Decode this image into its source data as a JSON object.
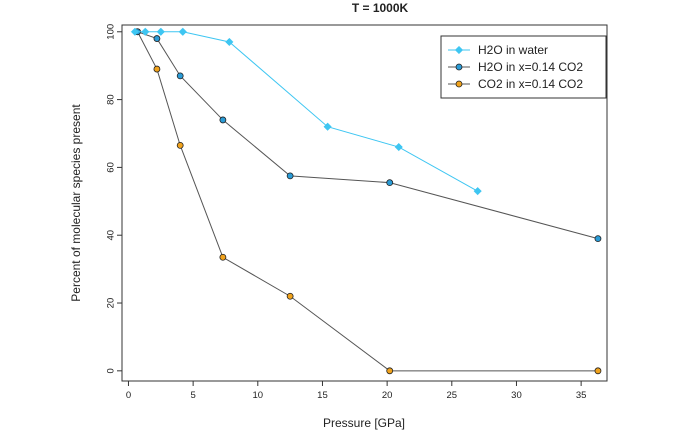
{
  "chart_data": {
    "type": "line",
    "title": "T = 1000K",
    "xlabel": "Pressure [GPa]",
    "ylabel": "Percent of molecular species present",
    "xlim": [
      -0.5,
      37
    ],
    "ylim": [
      -3,
      102
    ],
    "xticks": [
      0,
      5,
      10,
      15,
      20,
      25,
      30,
      35
    ],
    "yticks": [
      0,
      20,
      40,
      60,
      80,
      100
    ],
    "grid": false,
    "legend_position": "top-right",
    "series": [
      {
        "name": "H2O in water",
        "color": "#3ec6f2",
        "line_color": "#3ec6f2",
        "marker": "diamond",
        "x": [
          0.5,
          1.3,
          2.5,
          4.2,
          7.8,
          15.4,
          20.9,
          27.0
        ],
        "y": [
          100,
          100,
          100,
          100,
          97,
          72,
          66,
          53
        ]
      },
      {
        "name": "H2O in x=0.14 CO2",
        "color": "#2a9bd6",
        "line_color": "#555555",
        "marker": "circle",
        "x": [
          0.7,
          2.2,
          4.0,
          7.3,
          12.5,
          20.2,
          36.3
        ],
        "y": [
          100,
          98,
          87,
          74,
          57.5,
          55.5,
          39
        ]
      },
      {
        "name": "CO2 in x=0.14 CO2",
        "color": "#f0a21c",
        "line_color": "#555555",
        "marker": "circle",
        "x": [
          0.7,
          2.2,
          4.0,
          7.3,
          12.5,
          20.2,
          36.3
        ],
        "y": [
          100,
          89,
          66.5,
          33.5,
          22,
          0,
          0
        ]
      }
    ]
  }
}
